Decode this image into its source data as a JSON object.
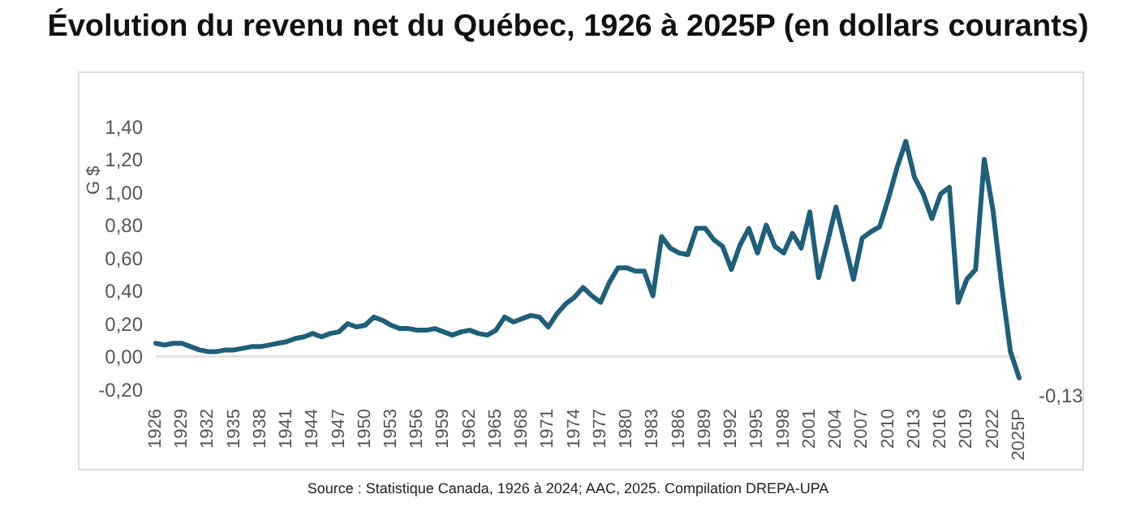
{
  "chart_data": {
    "type": "line",
    "title": "Évolution du revenu net du Québec, 1926 à 2025P (en dollars courants)",
    "ylabel": "G $",
    "categories": [
      "1926",
      null,
      null,
      "1929",
      null,
      null,
      "1932",
      null,
      null,
      "1935",
      null,
      null,
      "1938",
      null,
      null,
      "1941",
      null,
      null,
      "1944",
      null,
      null,
      "1947",
      null,
      null,
      "1950",
      null,
      null,
      "1953",
      null,
      null,
      "1956",
      null,
      null,
      "1959",
      null,
      null,
      "1962",
      null,
      null,
      "1965",
      null,
      null,
      "1968",
      null,
      null,
      "1971",
      null,
      null,
      "1974",
      null,
      null,
      "1977",
      null,
      null,
      "1980",
      null,
      null,
      "1983",
      null,
      null,
      "1986",
      null,
      null,
      "1989",
      null,
      null,
      "1992",
      null,
      null,
      "1995",
      null,
      null,
      "1998",
      null,
      null,
      "2001",
      null,
      null,
      "2004",
      null,
      null,
      "2007",
      null,
      null,
      "2010",
      null,
      null,
      "2013",
      null,
      null,
      "2016",
      null,
      null,
      "2019",
      null,
      null,
      "2022",
      null,
      null,
      "2025P"
    ],
    "series": [
      {
        "color": "#1f5f7a",
        "values": [
          0.08,
          0.07,
          0.08,
          0.08,
          0.06,
          0.04,
          0.03,
          0.03,
          0.04,
          0.04,
          0.05,
          0.06,
          0.06,
          0.07,
          0.08,
          0.09,
          0.11,
          0.12,
          0.14,
          0.12,
          0.14,
          0.15,
          0.2,
          0.18,
          0.19,
          0.24,
          0.22,
          0.19,
          0.17,
          0.17,
          0.16,
          0.16,
          0.17,
          0.15,
          0.13,
          0.15,
          0.16,
          0.14,
          0.13,
          0.16,
          0.24,
          0.21,
          0.23,
          0.25,
          0.24,
          0.18,
          0.26,
          0.32,
          0.36,
          0.42,
          0.37,
          0.33,
          0.45,
          0.54,
          0.54,
          0.52,
          0.52,
          0.37,
          0.73,
          0.66,
          0.63,
          0.62,
          0.78,
          0.78,
          0.71,
          0.67,
          0.53,
          0.68,
          0.78,
          0.63,
          0.8,
          0.67,
          0.63,
          0.75,
          0.66,
          0.88,
          0.48,
          0.69,
          0.91,
          0.69,
          0.47,
          0.72,
          0.76,
          0.79,
          0.96,
          1.15,
          1.31,
          1.09,
          0.99,
          0.84,
          0.99,
          1.03,
          0.33,
          0.47,
          0.53,
          1.2,
          0.89,
          0.43,
          0.03,
          -0.13
        ],
        "value_labels": [
          null,
          null,
          null,
          null,
          null,
          null,
          null,
          null,
          null,
          null,
          null,
          null,
          null,
          null,
          null,
          null,
          null,
          null,
          null,
          null,
          null,
          null,
          null,
          null,
          null,
          null,
          null,
          null,
          null,
          null,
          null,
          null,
          null,
          null,
          null,
          null,
          null,
          null,
          null,
          null,
          null,
          null,
          null,
          null,
          null,
          null,
          null,
          null,
          null,
          null,
          null,
          null,
          null,
          null,
          null,
          null,
          null,
          null,
          null,
          null,
          null,
          null,
          null,
          null,
          null,
          null,
          null,
          null,
          null,
          null,
          null,
          null,
          null,
          null,
          null,
          null,
          null,
          null,
          null,
          null,
          null,
          null,
          null,
          null,
          null,
          null,
          null,
          null,
          null,
          null,
          null,
          null,
          null,
          null,
          null,
          null,
          null,
          null,
          null,
          "-0,13"
        ]
      }
    ],
    "ylim": [
      -0.2,
      1.4
    ],
    "yticks": [
      {
        "value": -0.2,
        "label": "-0,20"
      },
      {
        "value": 0,
        "label": "0,00"
      },
      {
        "value": 0.2,
        "label": "0,20"
      },
      {
        "value": 0.4,
        "label": "0,40"
      },
      {
        "value": 0.6,
        "label": "0,60"
      },
      {
        "value": 0.8,
        "label": "0,80"
      },
      {
        "value": 1,
        "label": "1,00"
      },
      {
        "value": 1.2,
        "label": "1,20"
      },
      {
        "value": 1.4,
        "label": "1,40"
      }
    ],
    "ref_lines": [
      {
        "axis": "y",
        "value": 0,
        "color": "#e3e3e3"
      }
    ],
    "grid": false,
    "legend": false,
    "marker": "none",
    "line_style": "solid",
    "annotations": [
      "Source : Statistique Canada, 1926 à 2024; AAC, 2025. Compilation DREPA-UPA"
    ]
  }
}
